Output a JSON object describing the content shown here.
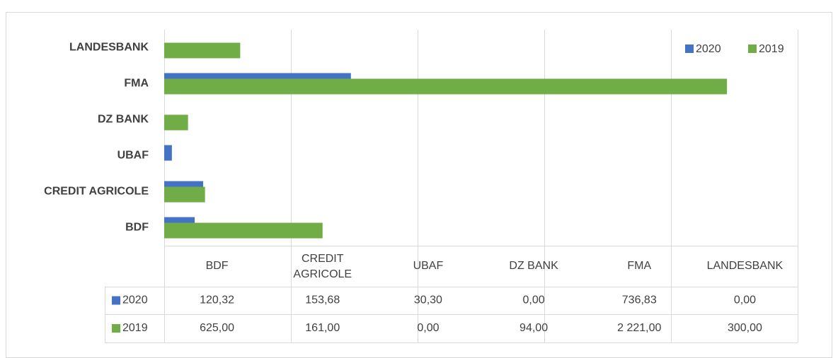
{
  "chart_data": {
    "type": "bar",
    "orientation": "horizontal",
    "categories": [
      "BDF",
      "CREDIT AGRICOLE",
      "UBAF",
      "DZ BANK",
      "FMA",
      "LANDESBANK"
    ],
    "series": [
      {
        "name": "2020",
        "color": "#4472c4",
        "values": [
          120.32,
          153.68,
          30.3,
          0,
          736.83,
          0
        ],
        "value_labels": [
          "120,32",
          "153,68",
          "30,30",
          "0,00",
          "736,83",
          "0,00"
        ]
      },
      {
        "name": "2019",
        "color": "#70ad47",
        "values": [
          625,
          161,
          0,
          94,
          2221,
          300
        ],
        "value_labels": [
          "625,00",
          "161,00",
          "0,00",
          "94,00",
          "2 221,00",
          "300,00"
        ]
      }
    ],
    "xlim": [
      0,
      2500
    ],
    "xticks": [
      0,
      500,
      1000,
      1500,
      2000,
      2500
    ],
    "grid": true,
    "legend": "top-right",
    "data_table": true
  }
}
